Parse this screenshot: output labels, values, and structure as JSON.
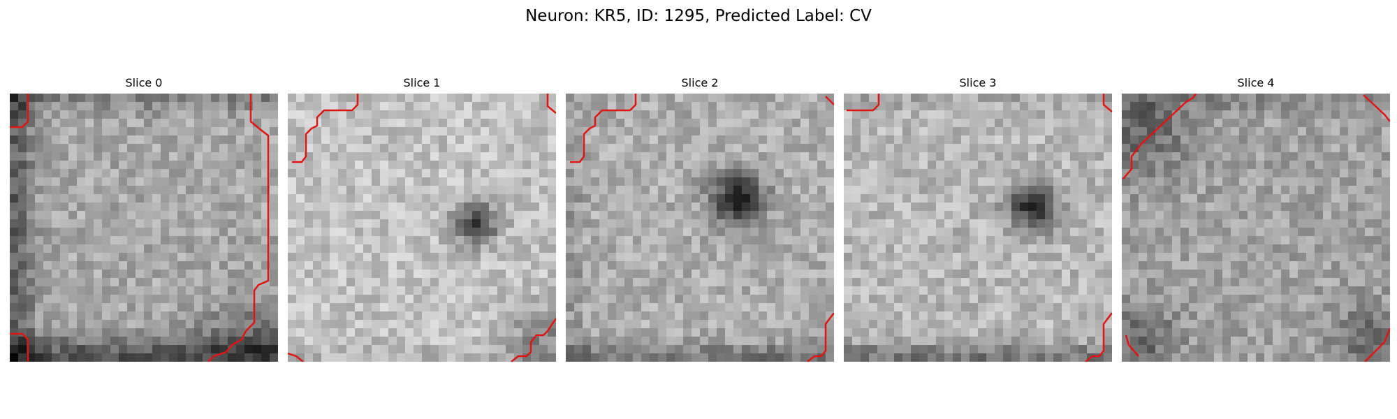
{
  "figure": {
    "title": "Neuron: KR5, ID: 1295, Predicted Label: CV"
  },
  "colors": {
    "contour": "#e11414",
    "background": "#ffffff",
    "colormap": "gray"
  },
  "slices": [
    {
      "title": "Slice 0",
      "blob": "none",
      "dark_regions": [
        "left edge",
        "bottom edge",
        "bottom-right corner",
        "top edge"
      ],
      "contour_corners": [
        "top-left",
        "right edge",
        "bottom-left",
        "bottom-right"
      ]
    },
    {
      "title": "Slice 1",
      "blob": "small dark spot right of center",
      "dark_regions": [
        "bottom-right corner"
      ],
      "contour_corners": [
        "top-left",
        "top-right",
        "bottom-left",
        "bottom-right"
      ]
    },
    {
      "title": "Slice 2",
      "blob": "dark spot upper-right of center",
      "dark_regions": [
        "bottom edge"
      ],
      "contour_corners": [
        "top-left",
        "top-right",
        "bottom-right"
      ]
    },
    {
      "title": "Slice 3",
      "blob": "dark ring right of center",
      "dark_regions": [
        "bottom edge"
      ],
      "contour_corners": [
        "top-left",
        "top-right",
        "bottom-right"
      ]
    },
    {
      "title": "Slice 4",
      "blob": "none",
      "dark_regions": [
        "top-left corner",
        "bottom corners"
      ],
      "contour_corners": [
        "top-left diagonal",
        "top-right",
        "bottom-left",
        "bottom-right"
      ]
    }
  ]
}
